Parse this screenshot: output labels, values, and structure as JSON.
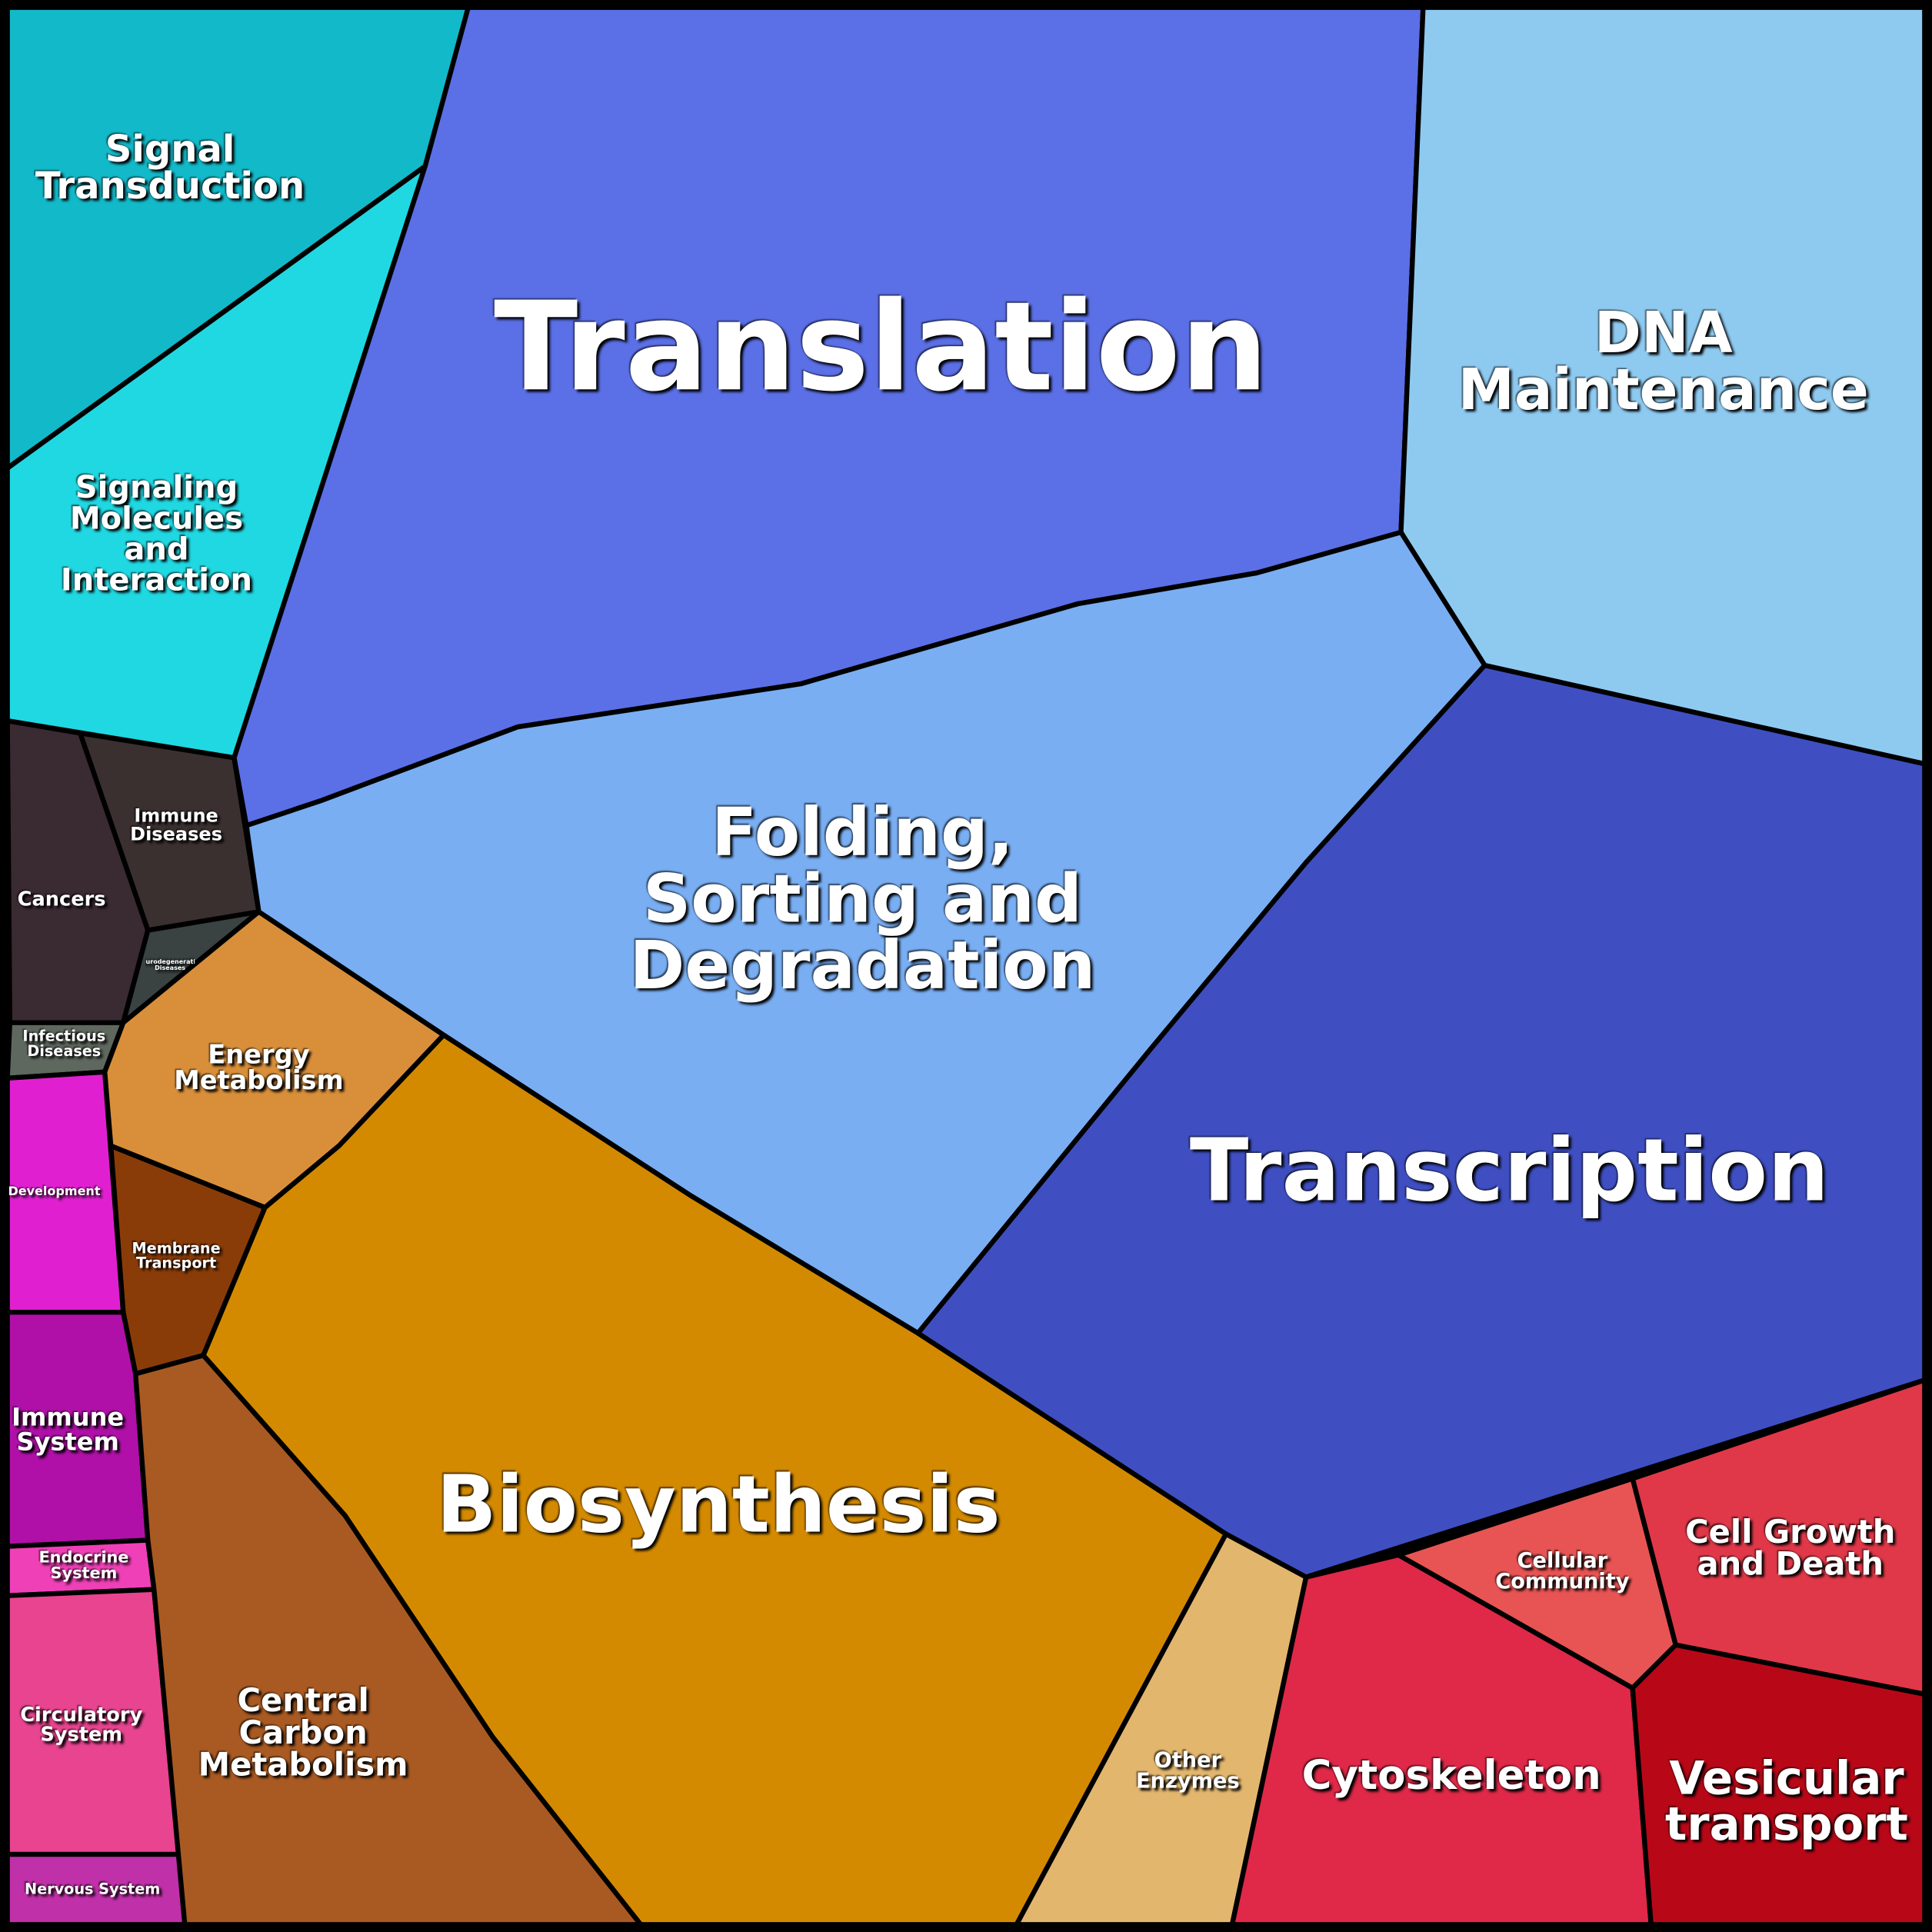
{
  "regions": [
    {
      "label": "Translation",
      "color": "#5b6fe6"
    },
    {
      "label": "DNA Maintenance",
      "color": "#8ecaf0"
    },
    {
      "label": "Folding, Sorting and Degradation",
      "color": "#79aef2"
    },
    {
      "label": "Transcription",
      "color": "#3f4fc2"
    },
    {
      "label": "Biosynthesis",
      "color": "#d48a00"
    },
    {
      "label": "Signal Transduction",
      "color": "#12b9c9"
    },
    {
      "label": "Signaling Molecules and Interaction",
      "color": "#20d8e2"
    },
    {
      "label": "Immune Diseases",
      "color": "#3b3030"
    },
    {
      "label": "Cancers",
      "color": "#3a2a32"
    },
    {
      "label": "Neurodegenerative Diseases",
      "color": "#3a4242"
    },
    {
      "label": "Infectious Diseases",
      "color": "#5f685f"
    },
    {
      "label": "Energy Metabolism",
      "color": "#d98f3a"
    },
    {
      "label": "Membrane Transport",
      "color": "#8a3c08"
    },
    {
      "label": "Development",
      "color": "#e020d0"
    },
    {
      "label": "Immune System",
      "color": "#b010a8"
    },
    {
      "label": "Endocrine System",
      "color": "#f040b8"
    },
    {
      "label": "Circulatory System",
      "color": "#e84490"
    },
    {
      "label": "Nervous System",
      "color": "#c030a8"
    },
    {
      "label": "Central Carbon Metabolism",
      "color": "#a95a22"
    },
    {
      "label": "Other Enzymes",
      "color": "#e3b66e"
    },
    {
      "label": "Cytoskeleton",
      "color": "#e02848"
    },
    {
      "label": "Cellular Community",
      "color": "#e85454"
    },
    {
      "label": "Cell Growth and Death",
      "color": "#e03848"
    },
    {
      "label": "Vesicular transport",
      "color": "#b80818"
    }
  ]
}
